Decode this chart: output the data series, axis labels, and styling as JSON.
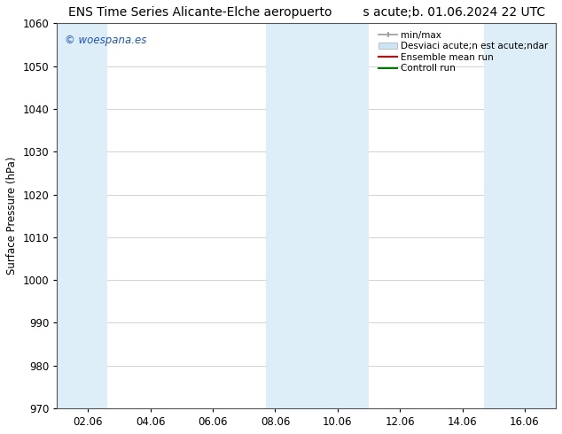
{
  "title_left": "ENS Time Series Alicante-Elche aeropuerto",
  "title_right": "s acute;b. 01.06.2024 22 UTC",
  "ylabel": "Surface Pressure (hPa)",
  "ylim": [
    970,
    1060
  ],
  "yticks": [
    970,
    980,
    990,
    1000,
    1010,
    1020,
    1030,
    1040,
    1050,
    1060
  ],
  "xlabel_ticks": [
    "02.06",
    "04.06",
    "06.06",
    "08.06",
    "10.06",
    "12.06",
    "14.06",
    "16.06"
  ],
  "background_color": "#ffffff",
  "plot_bg_color": "#ffffff",
  "shaded_color": "#ddeef8",
  "watermark_text": "© woespana.es",
  "watermark_color": "#2255bb",
  "legend_labels": [
    "min/max",
    "Desviaci acute;n est acute;ndar",
    "Ensemble mean run",
    "Controll run"
  ],
  "legend_colors": [
    "#aaaaaa",
    "#c8dff0",
    "#dd0000",
    "#007700"
  ],
  "grid_color": "#cccccc",
  "title_fontsize": 10,
  "axis_fontsize": 8.5,
  "tick_fontsize": 8.5,
  "legend_fontsize": 7.5
}
